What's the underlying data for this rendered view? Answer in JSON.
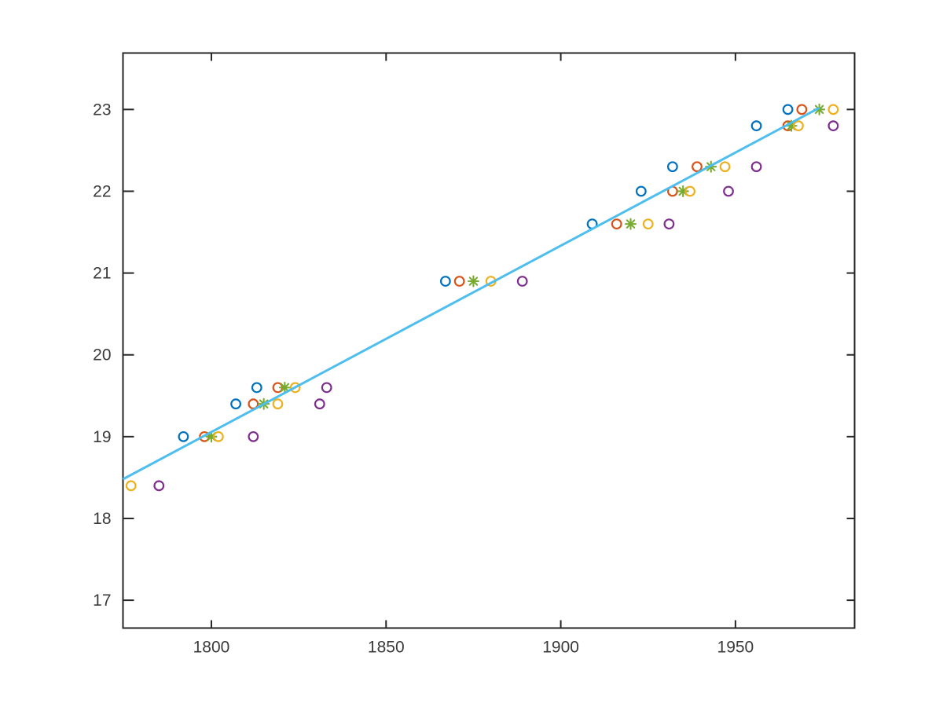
{
  "figure": {
    "background": "#ffffff",
    "axis_color": "#262626",
    "tick_label_color": "#3a3a3a"
  },
  "chart_data": {
    "type": "scatter",
    "title": "",
    "xlabel": "",
    "ylabel": "",
    "xlim": [
      1774.7,
      1984.1
    ],
    "ylim": [
      16.66,
      23.69
    ],
    "xticks": [
      1800,
      1850,
      1900,
      1950
    ],
    "yticks": [
      17,
      18,
      19,
      20,
      21,
      22,
      23
    ],
    "grid": false,
    "box": true,
    "tick_direction": "in",
    "legend": "none",
    "series": [
      {
        "name": "blue-circles",
        "marker": "circle",
        "color": "#0072BD",
        "points": [
          [
            1792,
            19.0
          ],
          [
            1807,
            19.4
          ],
          [
            1813,
            19.6
          ],
          [
            1867,
            20.9
          ],
          [
            1909,
            21.6
          ],
          [
            1923,
            22.0
          ],
          [
            1932,
            22.3
          ],
          [
            1956,
            22.8
          ],
          [
            1965,
            23.0
          ]
        ]
      },
      {
        "name": "orange-circles",
        "marker": "circle",
        "color": "#D95319",
        "points": [
          [
            1798,
            19.0
          ],
          [
            1812,
            19.4
          ],
          [
            1819,
            19.6
          ],
          [
            1871,
            20.9
          ],
          [
            1916,
            21.6
          ],
          [
            1932,
            22.0
          ],
          [
            1939,
            22.3
          ],
          [
            1965,
            22.8
          ],
          [
            1969,
            23.0
          ]
        ]
      },
      {
        "name": "green-asterisks",
        "marker": "asterisk",
        "color": "#77AC30",
        "points": [
          [
            1800,
            19.0
          ],
          [
            1815,
            19.4
          ],
          [
            1821,
            19.6
          ],
          [
            1875,
            20.9
          ],
          [
            1920,
            21.6
          ],
          [
            1935,
            22.0
          ],
          [
            1943,
            22.3
          ],
          [
            1966,
            22.8
          ],
          [
            1974,
            23.0
          ]
        ]
      },
      {
        "name": "yellow-circles",
        "marker": "circle",
        "color": "#EDB120",
        "points": [
          [
            1777,
            18.4
          ],
          [
            1802,
            19.0
          ],
          [
            1819,
            19.4
          ],
          [
            1824,
            19.6
          ],
          [
            1880,
            20.9
          ],
          [
            1925,
            21.6
          ],
          [
            1937,
            22.0
          ],
          [
            1947,
            22.3
          ],
          [
            1968,
            22.8
          ],
          [
            1978,
            23.0
          ]
        ]
      },
      {
        "name": "purple-circles",
        "marker": "circle",
        "color": "#7E2F8E",
        "points": [
          [
            1785,
            18.4
          ],
          [
            1812,
            19.0
          ],
          [
            1831,
            19.4
          ],
          [
            1833,
            19.6
          ],
          [
            1889,
            20.9
          ],
          [
            1931,
            21.6
          ],
          [
            1948,
            22.0
          ],
          [
            1956,
            22.3
          ],
          [
            1978,
            22.8
          ]
        ]
      }
    ],
    "fit_line": {
      "color": "#4DBEEE",
      "x1": 1774.7,
      "y1": 18.48,
      "x2": 1974.0,
      "y2": 23.02
    }
  }
}
